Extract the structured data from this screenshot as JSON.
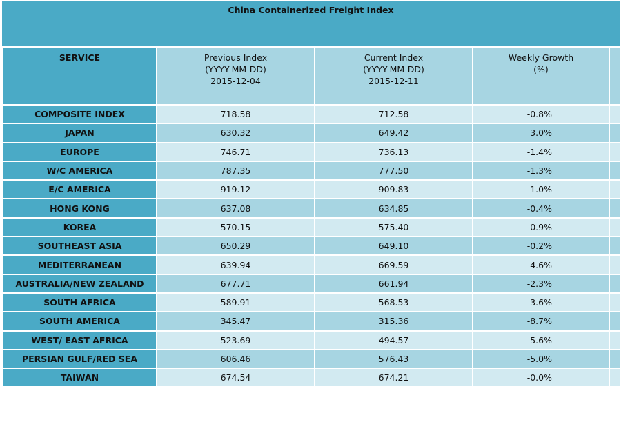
{
  "title": "China Containerized Freight Index",
  "headers": {
    "service": "SERVICE",
    "previous": [
      "Previous Index",
      "(YYYY-MM-DD)",
      "2015-12-04"
    ],
    "current": [
      "Current Index",
      "(YYYY-MM-DD)",
      "2015-12-11"
    ],
    "growth": [
      "Weekly Growth",
      "(%)"
    ]
  },
  "rows": [
    {
      "service": "COMPOSITE INDEX",
      "previous": "718.58",
      "current": "712.58",
      "growth": "-0.8%"
    },
    {
      "service": "JAPAN",
      "previous": "630.32",
      "current": "649.42",
      "growth": "3.0%"
    },
    {
      "service": "EUROPE",
      "previous": "746.71",
      "current": "736.13",
      "growth": "-1.4%"
    },
    {
      "service": "W/C AMERICA",
      "previous": "787.35",
      "current": "777.50",
      "growth": "-1.3%"
    },
    {
      "service": "E/C AMERICA",
      "previous": "919.12",
      "current": "909.83",
      "growth": "-1.0%"
    },
    {
      "service": "HONG KONG",
      "previous": "637.08",
      "current": "634.85",
      "growth": "-0.4%"
    },
    {
      "service": "KOREA",
      "previous": "570.15",
      "current": "575.40",
      "growth": "0.9%"
    },
    {
      "service": "SOUTHEAST ASIA",
      "previous": "650.29",
      "current": "649.10",
      "growth": "-0.2%"
    },
    {
      "service": "MEDITERRANEAN",
      "previous": "639.94",
      "current": "669.59",
      "growth": "4.6%"
    },
    {
      "service": "AUSTRALIA/NEW ZEALAND",
      "previous": "677.71",
      "current": "661.94",
      "growth": "-2.3%"
    },
    {
      "service": "SOUTH AFRICA",
      "previous": "589.91",
      "current": "568.53",
      "growth": "-3.6%"
    },
    {
      "service": "SOUTH AMERICA",
      "previous": "345.47",
      "current": "315.36",
      "growth": "-8.7%"
    },
    {
      "service": "WEST/ EAST AFRICA",
      "previous": "523.69",
      "current": "494.57",
      "growth": "-5.6%"
    },
    {
      "service": "PERSIAN GULF/RED SEA",
      "previous": "606.46",
      "current": "576.43",
      "growth": "-5.0%"
    },
    {
      "service": "TAIWAN",
      "previous": "674.54",
      "current": "674.21",
      "growth": "-0.0%"
    }
  ]
}
